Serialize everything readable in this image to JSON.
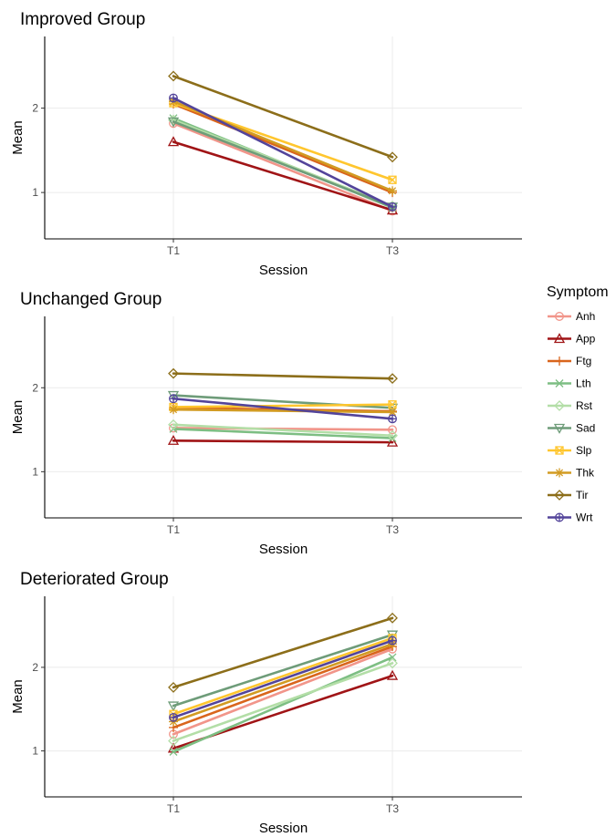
{
  "legend": {
    "title": "Symptom",
    "position": "right"
  },
  "colors": {
    "Anh": "#F1958A",
    "App": "#A01416",
    "Ftg": "#D9651C",
    "Lth": "#7DBE83",
    "Rst": "#B3DEA7",
    "Sad": "#6E9C79",
    "Slp": "#FFC62E",
    "Thk": "#D29B22",
    "Tir": "#8C6E1A",
    "Wrt": "#53449A"
  },
  "markers": {
    "Anh": "circle",
    "App": "triangle-up",
    "Ftg": "plus",
    "Lth": "cross",
    "Rst": "diamond",
    "Sad": "triangle-down",
    "Slp": "square-cross",
    "Thk": "star",
    "Tir": "diamond",
    "Wrt": "circle-plus"
  },
  "chart_data": [
    {
      "type": "line",
      "title": "Improved Group",
      "xlabel": "Session",
      "ylabel": "Mean",
      "categories": [
        "T1",
        "T3"
      ],
      "y_ticks": [
        1,
        2
      ],
      "ylim": [
        0.45,
        2.85
      ],
      "grid": true,
      "series": [
        {
          "name": "Anh",
          "values": [
            1.82,
            0.78
          ]
        },
        {
          "name": "App",
          "values": [
            1.6,
            0.79
          ]
        },
        {
          "name": "Ftg",
          "values": [
            2.05,
            1.0
          ]
        },
        {
          "name": "Lth",
          "values": [
            1.88,
            0.82
          ]
        },
        {
          "name": "Rst",
          "values": [
            1.86,
            0.84
          ]
        },
        {
          "name": "Sad",
          "values": [
            1.84,
            0.83
          ]
        },
        {
          "name": "Slp",
          "values": [
            2.06,
            1.15
          ]
        },
        {
          "name": "Thk",
          "values": [
            2.08,
            1.02
          ]
        },
        {
          "name": "Tir",
          "values": [
            2.38,
            1.42
          ]
        },
        {
          "name": "Wrt",
          "values": [
            2.12,
            0.83
          ]
        }
      ]
    },
    {
      "type": "line",
      "title": "Unchanged Group",
      "xlabel": "Session",
      "ylabel": "Mean",
      "categories": [
        "T1",
        "T3"
      ],
      "y_ticks": [
        1,
        2
      ],
      "ylim": [
        0.45,
        2.85
      ],
      "grid": true,
      "series": [
        {
          "name": "Anh",
          "values": [
            1.52,
            1.5
          ]
        },
        {
          "name": "App",
          "values": [
            1.37,
            1.35
          ]
        },
        {
          "name": "Ftg",
          "values": [
            1.76,
            1.72
          ]
        },
        {
          "name": "Lth",
          "values": [
            1.51,
            1.4
          ]
        },
        {
          "name": "Rst",
          "values": [
            1.56,
            1.43
          ]
        },
        {
          "name": "Sad",
          "values": [
            1.91,
            1.76
          ]
        },
        {
          "name": "Slp",
          "values": [
            1.77,
            1.8
          ]
        },
        {
          "name": "Thk",
          "values": [
            1.74,
            1.71
          ]
        },
        {
          "name": "Tir",
          "values": [
            2.17,
            2.11
          ]
        },
        {
          "name": "Wrt",
          "values": [
            1.87,
            1.63
          ]
        }
      ]
    },
    {
      "type": "line",
      "title": "Deteriorated Group",
      "xlabel": "Session",
      "ylabel": "Mean",
      "categories": [
        "T1",
        "T3"
      ],
      "y_ticks": [
        1,
        2
      ],
      "ylim": [
        0.45,
        2.85
      ],
      "grid": true,
      "series": [
        {
          "name": "Anh",
          "values": [
            1.2,
            2.22
          ]
        },
        {
          "name": "App",
          "values": [
            1.03,
            1.9
          ]
        },
        {
          "name": "Ftg",
          "values": [
            1.28,
            2.25
          ]
        },
        {
          "name": "Lth",
          "values": [
            0.99,
            2.12
          ]
        },
        {
          "name": "Rst",
          "values": [
            1.12,
            2.05
          ]
        },
        {
          "name": "Sad",
          "values": [
            1.54,
            2.39
          ]
        },
        {
          "name": "Slp",
          "values": [
            1.44,
            2.35
          ]
        },
        {
          "name": "Thk",
          "values": [
            1.35,
            2.28
          ]
        },
        {
          "name": "Tir",
          "values": [
            1.76,
            2.59
          ]
        },
        {
          "name": "Wrt",
          "values": [
            1.4,
            2.32
          ]
        }
      ]
    }
  ]
}
